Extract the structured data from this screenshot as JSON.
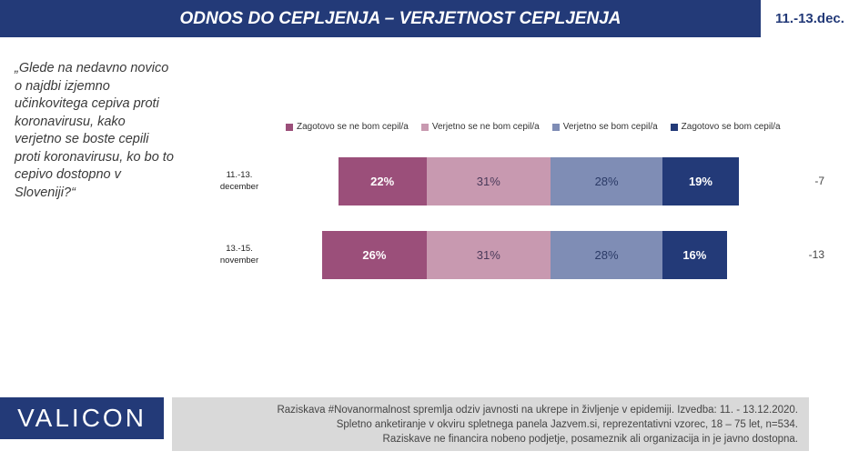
{
  "header": {
    "title": "ODNOS DO CEPLJENJA – VERJETNOST CEPLJENJA",
    "date": "11.-13.dec."
  },
  "question": "„Glede na nedavno novico o najdbi izjemno učinkovitega cepiva proti koronavirusu, kako verjetno se boste cepili proti koronavirusu, ko bo to cepivo dostopno v Sloveniji?“",
  "chart_data": {
    "type": "bar",
    "orientation": "horizontal-stacked-100",
    "categories": [
      "11.-13. december",
      "13.-15. november"
    ],
    "series": [
      {
        "name": "Zagotovo se ne bom cepil/a",
        "color": "#9b4f7a",
        "values": [
          22,
          26
        ]
      },
      {
        "name": "Verjetno se ne bom cepil/a",
        "color": "#c899b0",
        "values": [
          31,
          31
        ]
      },
      {
        "name": "Verjetno se bom cepil/a",
        "color": "#7f8db5",
        "values": [
          28,
          28
        ]
      },
      {
        "name": "Zagotovo se bom cepil/a",
        "color": "#233a78",
        "values": [
          19,
          16
        ]
      }
    ],
    "net_values": [
      "-7",
      "-13"
    ],
    "legend_position": "top",
    "unit": "%"
  },
  "footer": {
    "logo": "VALICON",
    "line1": "Raziskava #Novanormalnost spremlja odziv javnosti na ukrepe in življenje v epidemiji. Izvedba: 11. - 13.12.2020.",
    "line2": "Spletno anketiranje v okviru spletnega panela Jazvem.si, reprezentativni vzorec, 18 – 75 let, n=534.",
    "line3": "Raziskave ne financira nobeno podjetje, posameznik ali organizacija in je javno dostopna."
  }
}
